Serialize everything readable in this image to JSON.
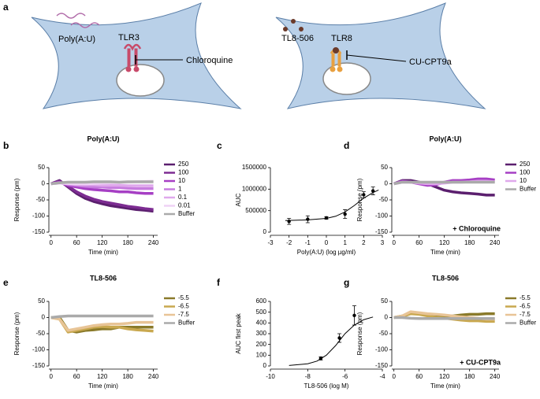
{
  "panel_letters": [
    "a",
    "b",
    "c",
    "d",
    "e",
    "f",
    "g"
  ],
  "diagram": {
    "left": {
      "ligand": "Poly(A:U)",
      "receptor": "TLR3",
      "inhibitor": "Chloroquine"
    },
    "right": {
      "ligand": "TL8-506",
      "receptor": "TLR8",
      "inhibitor": "CU-CPT9a"
    }
  },
  "chart_data": [
    {
      "type": "line",
      "title": "Poly(A:U)",
      "xlabel": "Time (min)",
      "ylabel": "Response (pm)",
      "x": [
        0,
        20,
        40,
        60,
        80,
        100,
        120,
        140,
        160,
        180,
        200,
        220,
        240
      ],
      "xlim": [
        -5,
        250
      ],
      "xticks": [
        0,
        60,
        120,
        180,
        240
      ],
      "ylim": [
        -150,
        50
      ],
      "yticks": [
        -150,
        -100,
        -50,
        0,
        50
      ],
      "legend": "right",
      "series": [
        {
          "name": "250",
          "color": "#5b1f6e",
          "values": [
            0,
            10,
            -10,
            -30,
            -45,
            -55,
            -62,
            -68,
            -72,
            -76,
            -80,
            -82,
            -85
          ]
        },
        {
          "name": "100",
          "color": "#7d2c92",
          "values": [
            0,
            8,
            -8,
            -25,
            -38,
            -48,
            -55,
            -60,
            -65,
            -70,
            -73,
            -77,
            -80
          ]
        },
        {
          "name": "10",
          "color": "#a63fc4",
          "values": [
            0,
            5,
            -5,
            -10,
            -15,
            -18,
            -20,
            -22,
            -25,
            -25,
            -28,
            -30,
            -30
          ]
        },
        {
          "name": "1",
          "color": "#c77bdf",
          "values": [
            0,
            3,
            -2,
            -5,
            -8,
            -10,
            -10,
            -12,
            -12,
            -14,
            -15,
            -15,
            -15
          ]
        },
        {
          "name": "0.1",
          "color": "#dfa8ec",
          "values": [
            0,
            2,
            0,
            -2,
            -3,
            -3,
            -5,
            -5,
            -5,
            -6,
            -6,
            -6,
            -6
          ]
        },
        {
          "name": "0.01",
          "color": "#efd2f5",
          "values": [
            0,
            2,
            1,
            0,
            0,
            1,
            2,
            3,
            4,
            5,
            6,
            7,
            8
          ]
        },
        {
          "name": "Buffer",
          "color": "#aaaaaa",
          "values": [
            0,
            3,
            5,
            5,
            5,
            6,
            6,
            6,
            5,
            6,
            6,
            6,
            6
          ]
        }
      ]
    },
    {
      "type": "scatter",
      "xlabel": "Poly(A:U) (log µg/ml)",
      "ylabel": "AUC",
      "color": "#000000",
      "x": [
        -2,
        -1,
        0,
        1,
        2,
        2.5
      ],
      "values": [
        250000,
        300000,
        330000,
        420000,
        870000,
        960000
      ],
      "errors": [
        70000,
        80000,
        30000,
        100000,
        70000,
        90000
      ],
      "fit": {
        "x": [
          -2.2,
          -1,
          0,
          0.5,
          1,
          1.5,
          2,
          2.5,
          2.8
        ],
        "y": [
          270000,
          285000,
          320000,
          370000,
          470000,
          620000,
          790000,
          920000,
          980000
        ]
      },
      "xlim": [
        -3,
        3
      ],
      "xticks": [
        -3,
        -2,
        -1,
        0,
        1,
        2,
        3
      ],
      "ylim": [
        0,
        1500000
      ],
      "yticks": [
        0,
        500000,
        1000000,
        1500000
      ]
    },
    {
      "type": "line",
      "title": "Poly(A:U)",
      "xlabel": "Time (min)",
      "ylabel": "Response (pm)",
      "annotation": "+ Chloroquine",
      "x": [
        0,
        20,
        40,
        60,
        80,
        100,
        120,
        140,
        160,
        180,
        200,
        220,
        240
      ],
      "xlim": [
        -5,
        250
      ],
      "xticks": [
        0,
        60,
        120,
        180,
        240
      ],
      "ylim": [
        -150,
        50
      ],
      "yticks": [
        -150,
        -100,
        -50,
        0,
        50
      ],
      "legend": "right",
      "series": [
        {
          "name": "250",
          "color": "#5b1f6e",
          "values": [
            0,
            10,
            10,
            5,
            0,
            -10,
            -20,
            -25,
            -28,
            -30,
            -32,
            -35,
            -35
          ]
        },
        {
          "name": "100",
          "color": "#a63fc4",
          "values": [
            0,
            8,
            5,
            0,
            -5,
            -3,
            5,
            10,
            10,
            12,
            15,
            15,
            12
          ]
        },
        {
          "name": "10",
          "color": "#dfa8ec",
          "values": [
            0,
            5,
            5,
            2,
            0,
            0,
            2,
            5,
            5,
            6,
            8,
            8,
            6
          ]
        },
        {
          "name": "Buffer",
          "color": "#aaaaaa",
          "values": [
            0,
            5,
            5,
            5,
            5,
            5,
            5,
            5,
            5,
            5,
            5,
            5,
            5
          ]
        }
      ]
    },
    {
      "type": "line",
      "title": "TL8-506",
      "xlabel": "Time (min)",
      "ylabel": "Response (pm)",
      "x": [
        0,
        20,
        40,
        60,
        80,
        100,
        120,
        140,
        160,
        180,
        200,
        220,
        240
      ],
      "xlim": [
        -5,
        250
      ],
      "xticks": [
        0,
        60,
        120,
        180,
        240
      ],
      "ylim": [
        -150,
        50
      ],
      "yticks": [
        -150,
        -100,
        -50,
        0,
        50
      ],
      "legend": "right",
      "series": [
        {
          "name": "-5.5",
          "color": "#8a7a2a",
          "values": [
            0,
            0,
            -40,
            -45,
            -40,
            -38,
            -35,
            -35,
            -30,
            -30,
            -30,
            -30,
            -30
          ]
        },
        {
          "name": "-6.5",
          "color": "#c9a84f",
          "values": [
            0,
            -5,
            -45,
            -40,
            -35,
            -30,
            -28,
            -30,
            -30,
            -35,
            -38,
            -40,
            -42
          ]
        },
        {
          "name": "-7.5",
          "color": "#e8c496",
          "values": [
            0,
            -5,
            -40,
            -35,
            -30,
            -25,
            -22,
            -20,
            -20,
            -18,
            -15,
            -15,
            -15
          ]
        },
        {
          "name": "Buffer",
          "color": "#aaaaaa",
          "values": [
            0,
            3,
            5,
            5,
            5,
            5,
            5,
            5,
            5,
            5,
            5,
            5,
            5
          ]
        }
      ]
    },
    {
      "type": "scatter",
      "xlabel": "TL8-506 (log M)",
      "ylabel": "AUC first peak",
      "color": "#000000",
      "x": [
        -7.3,
        -6.3,
        -5.5
      ],
      "values": [
        70,
        260,
        470
      ],
      "errors": [
        15,
        40,
        90
      ],
      "fit": {
        "x": [
          -9,
          -8,
          -7.5,
          -7,
          -6.5,
          -6,
          -5.5,
          -5,
          -4.5
        ],
        "y": [
          5,
          20,
          45,
          100,
          190,
          300,
          380,
          430,
          455
        ]
      },
      "xlim": [
        -10,
        -4
      ],
      "xticks": [
        -10,
        -8,
        -6,
        -4
      ],
      "ylim": [
        0,
        600
      ],
      "yticks": [
        0,
        100,
        200,
        300,
        400,
        500,
        600
      ]
    },
    {
      "type": "line",
      "title": "TL8-506",
      "xlabel": "Time (min)",
      "ylabel": "Response (pm)",
      "annotation": "+ CU-CPT9a",
      "x": [
        0,
        20,
        40,
        60,
        80,
        100,
        120,
        140,
        160,
        180,
        200,
        220,
        240
      ],
      "xlim": [
        -5,
        250
      ],
      "xticks": [
        0,
        60,
        120,
        180,
        240
      ],
      "ylim": [
        -150,
        50
      ],
      "yticks": [
        -150,
        -100,
        -50,
        0,
        50
      ],
      "legend": "right",
      "series": [
        {
          "name": "-5.5",
          "color": "#8a7a2a",
          "values": [
            0,
            5,
            15,
            12,
            8,
            5,
            5,
            5,
            8,
            10,
            10,
            12,
            12
          ]
        },
        {
          "name": "-6.5",
          "color": "#c9a84f",
          "values": [
            0,
            3,
            12,
            10,
            5,
            0,
            -2,
            -5,
            -8,
            -10,
            -10,
            -12,
            -12
          ]
        },
        {
          "name": "-7.5",
          "color": "#e8c496",
          "values": [
            0,
            5,
            18,
            15,
            12,
            10,
            8,
            5,
            2,
            0,
            -2,
            -5,
            -5
          ]
        },
        {
          "name": "Buffer",
          "color": "#aaaaaa",
          "values": [
            0,
            0,
            -2,
            -3,
            -3,
            -3,
            -3,
            -3,
            -3,
            -3,
            -3,
            -3,
            -3
          ]
        }
      ]
    }
  ]
}
